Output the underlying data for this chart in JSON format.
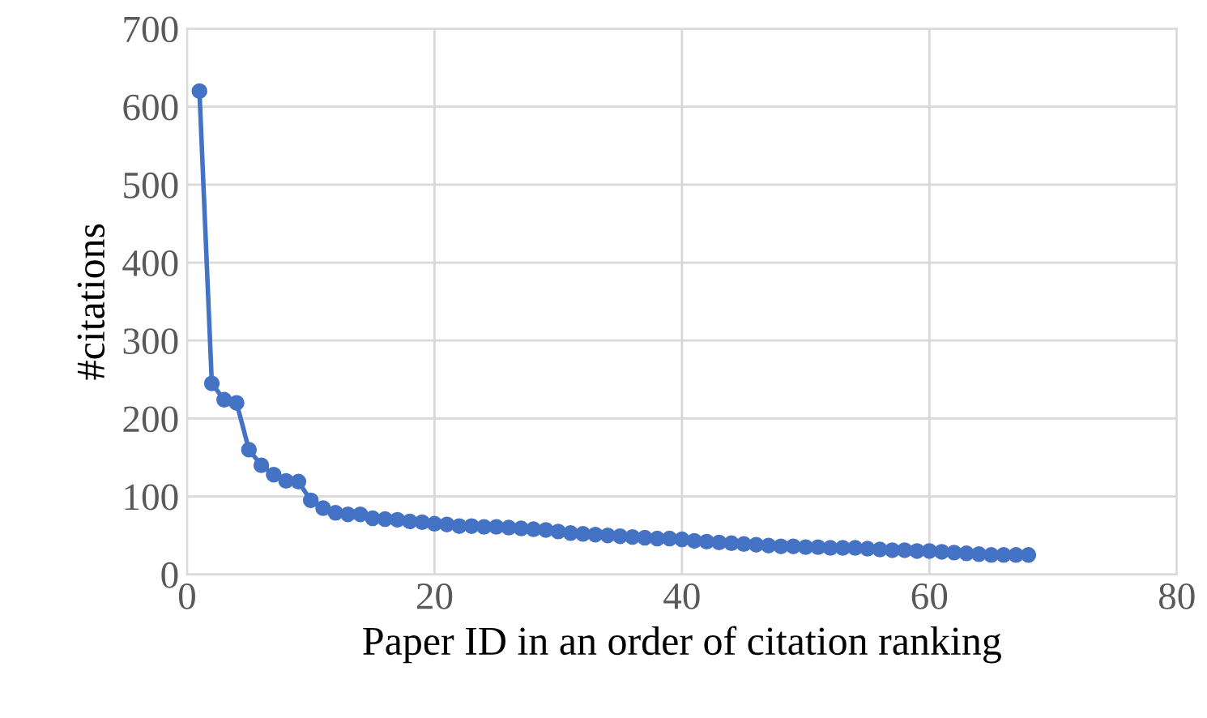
{
  "chart_data": {
    "type": "line",
    "xlabel": "Paper ID in an order of citation ranking",
    "ylabel": "#citations",
    "x": [
      1,
      2,
      3,
      4,
      5,
      6,
      7,
      8,
      9,
      10,
      11,
      12,
      13,
      14,
      15,
      16,
      17,
      18,
      19,
      20,
      21,
      22,
      23,
      24,
      25,
      26,
      27,
      28,
      29,
      30,
      31,
      32,
      33,
      34,
      35,
      36,
      37,
      38,
      39,
      40,
      41,
      42,
      43,
      44,
      45,
      46,
      47,
      48,
      49,
      50,
      51,
      52,
      53,
      54,
      55,
      56,
      57,
      58,
      59,
      60,
      61,
      62,
      63,
      64,
      65,
      66,
      67,
      68
    ],
    "series": [
      {
        "color": "#4472c4",
        "values": [
          620,
          245,
          224,
          220,
          160,
          140,
          128,
          120,
          119,
          95,
          85,
          79,
          77,
          77,
          72,
          71,
          70,
          68,
          67,
          65,
          64,
          62,
          62,
          61,
          61,
          60,
          59,
          58,
          57,
          55,
          53,
          52,
          51,
          50,
          49,
          48,
          47,
          46,
          46,
          45,
          43,
          42,
          41,
          40,
          39,
          38,
          37,
          36,
          36,
          35,
          35,
          34,
          34,
          34,
          33,
          32,
          31,
          31,
          30,
          30,
          29,
          28,
          27,
          26,
          25,
          25,
          25,
          25
        ]
      }
    ],
    "xlim": [
      0,
      80
    ],
    "xticks": [
      0,
      20,
      40,
      60,
      80
    ],
    "ylim": [
      0,
      700
    ],
    "yticks": [
      0,
      100,
      200,
      300,
      400,
      500,
      600,
      700
    ],
    "grid": true,
    "marker": "circle",
    "line_style": "solid",
    "legend": false
  }
}
